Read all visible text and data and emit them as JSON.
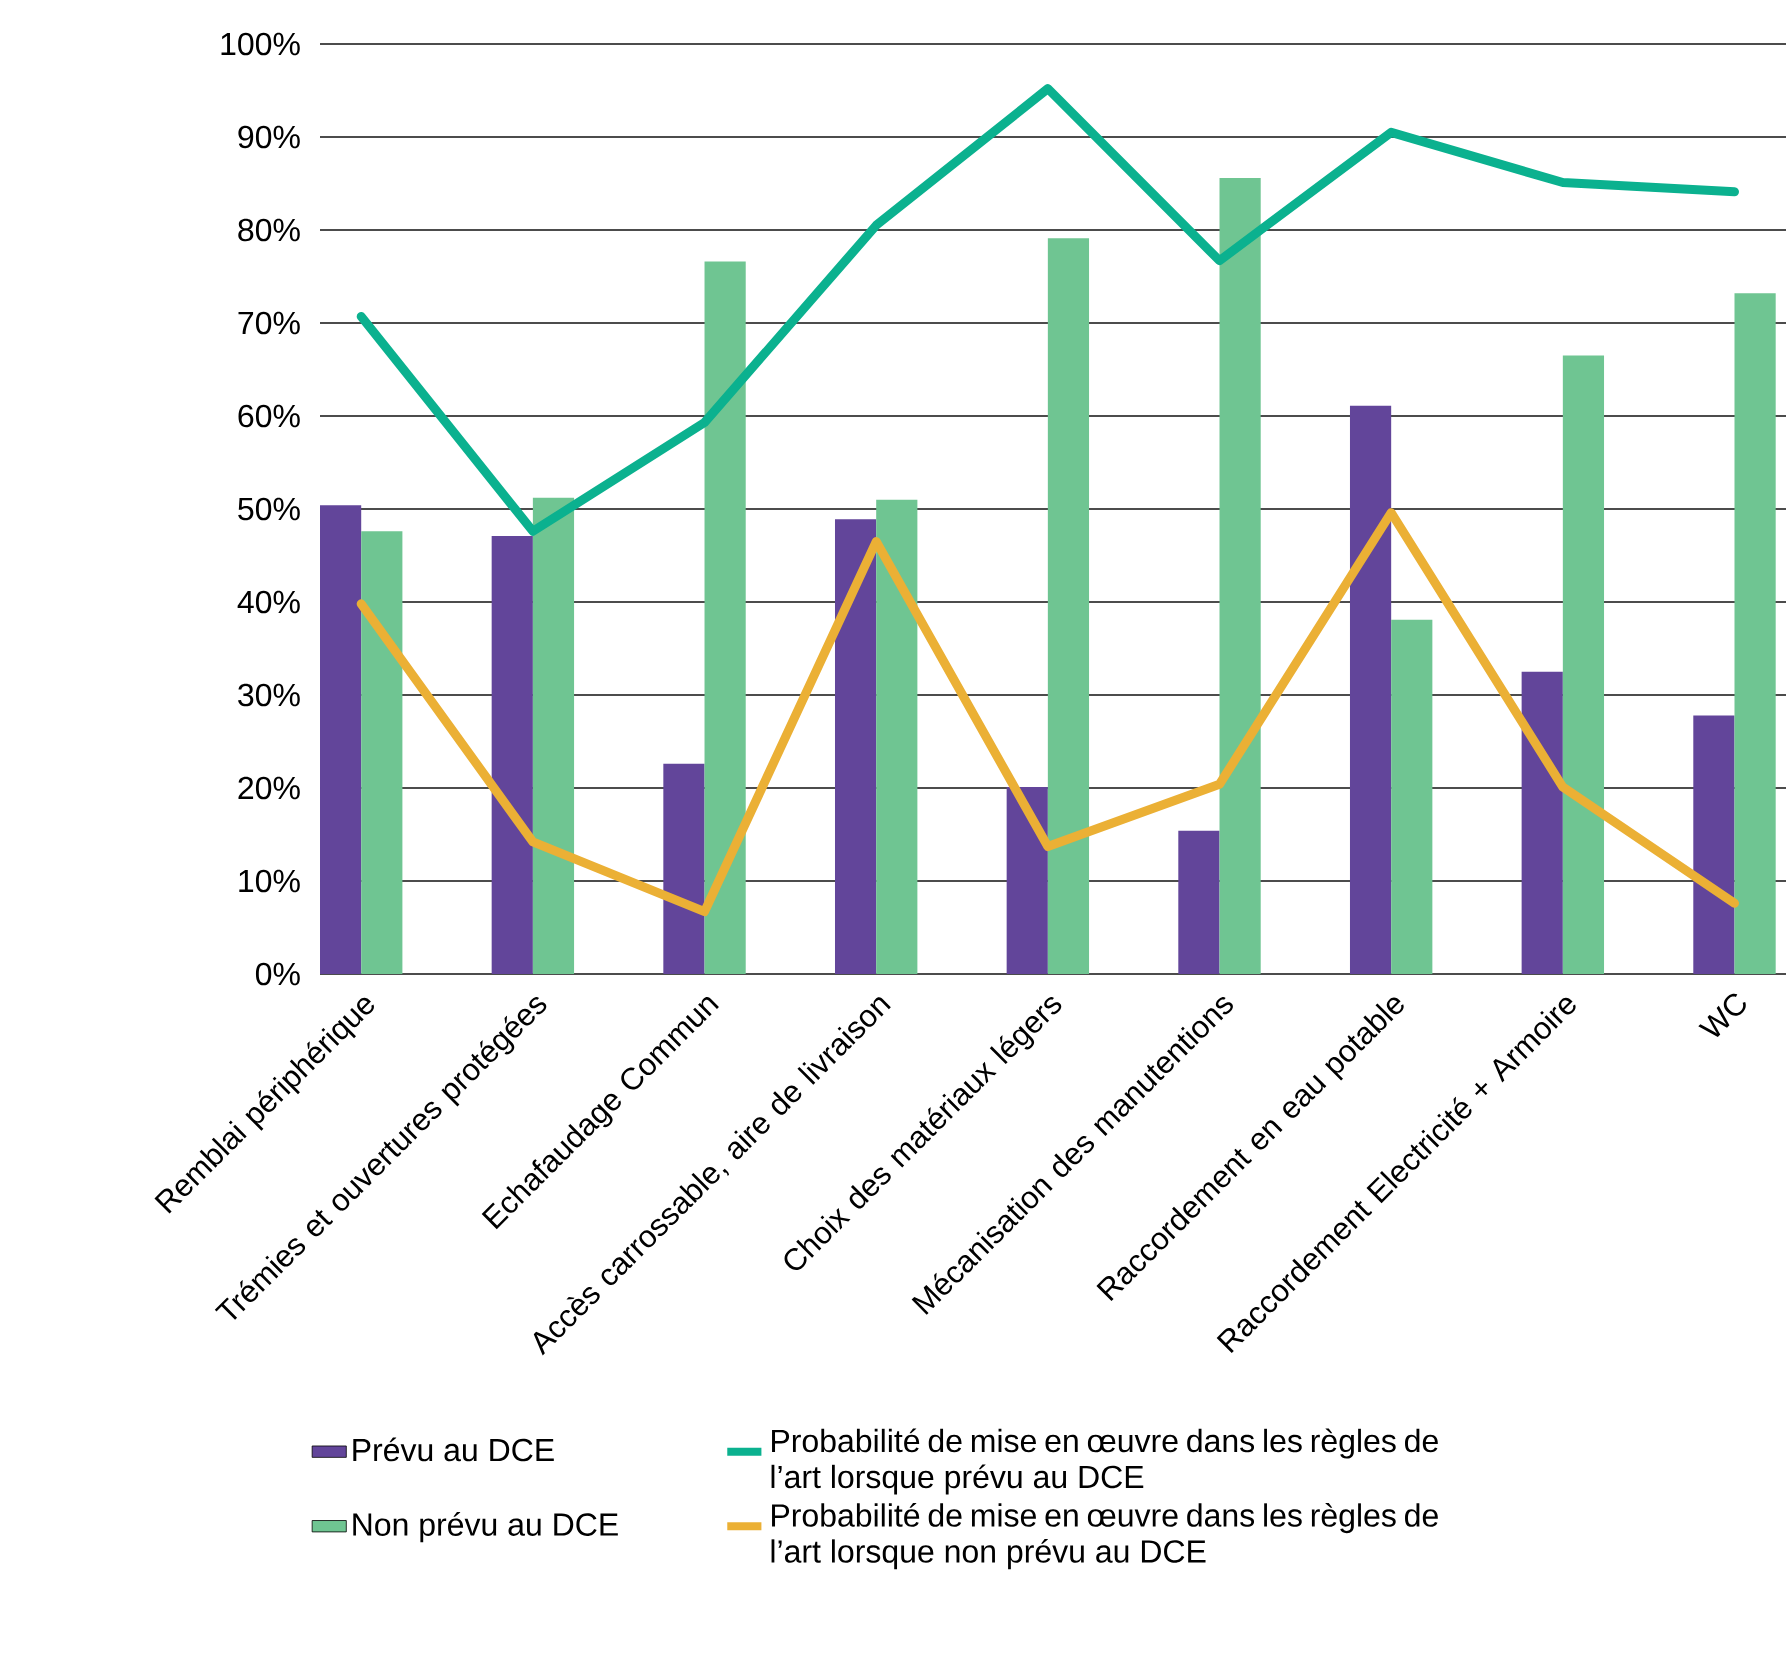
{
  "chart_data": {
    "type": "bar",
    "categories": [
      "Remblai périphérique",
      "Trémies et ouvertures protégées",
      "Echafaudage Commun",
      "Accès carrossable, aire de livraison",
      "Choix des matériaux légers",
      "Mécanisation des manutentions",
      "Raccordement en eau potable",
      "Raccordement Electricité + Armoire",
      "WC"
    ],
    "series": [
      {
        "name": "Prévu au DCE",
        "color": "#62459a",
        "values": [
          50.4,
          47.1,
          22.6,
          48.9,
          20.1,
          15.4,
          61.1,
          32.5,
          27.8
        ]
      },
      {
        "name": "Non prévu au DCE",
        "color": "#6fc592",
        "values": [
          47.6,
          51.2,
          76.6,
          51.0,
          79.1,
          85.6,
          38.1,
          66.5,
          73.2
        ]
      },
      {
        "name": "Probabilité de mise en œuvre dans les règles de l’art lorsque prévu au DCE",
        "type": "line",
        "color": "#0bb18f",
        "values": [
          70.7,
          47.6,
          59.3,
          80.5,
          95.2,
          76.7,
          90.5,
          85.1,
          84.1
        ]
      },
      {
        "name": "Probabilité de mise en œuvre dans les règles de l’art lorsque non prévu au DCE",
        "type": "line",
        "color": "#ebb035",
        "values": [
          39.8,
          14.2,
          6.7,
          46.5,
          13.7,
          20.4,
          49.6,
          20.1,
          7.6
        ]
      }
    ],
    "ylim": [
      0,
      100
    ],
    "yticks": [
      {
        "value": 0,
        "label": "0%"
      },
      {
        "value": 10,
        "label": "10%"
      },
      {
        "value": 20,
        "label": "20%"
      },
      {
        "value": 30,
        "label": "30%"
      },
      {
        "value": 40,
        "label": "40%"
      },
      {
        "value": 50,
        "label": "50%"
      },
      {
        "value": 60,
        "label": "60%"
      },
      {
        "value": 70,
        "label": "70%"
      },
      {
        "value": 80,
        "label": "80%"
      },
      {
        "value": 90,
        "label": "90%"
      },
      {
        "value": 100,
        "label": "100%"
      }
    ],
    "grid": "y",
    "legend": "bottom",
    "marker": "none",
    "line_style": "solid"
  }
}
